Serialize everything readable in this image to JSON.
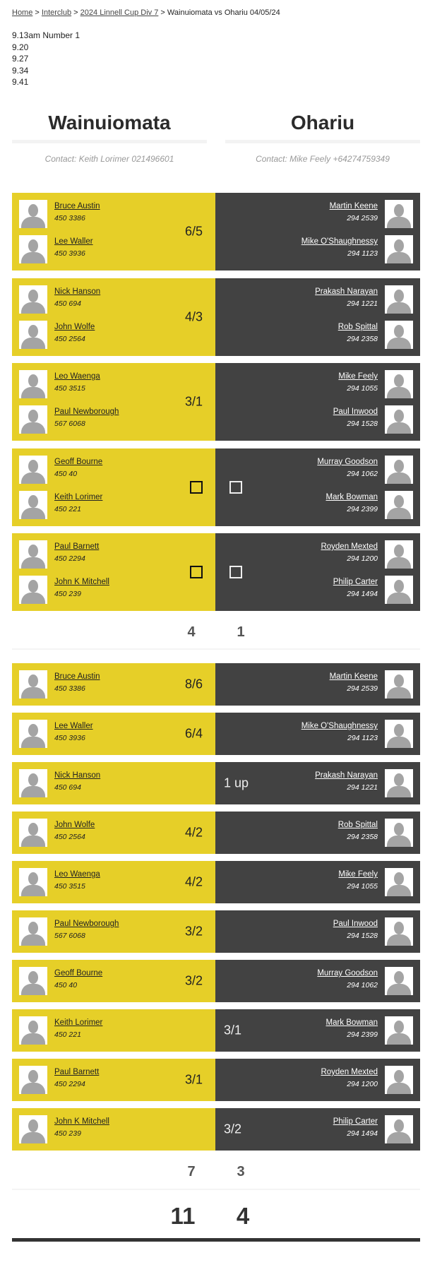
{
  "breadcrumb": {
    "items": [
      "Home",
      "Interclub",
      "2024 Linnell Cup Div 7"
    ],
    "current": "Wainuiomata vs Ohariu 04/05/24",
    "separator": ">"
  },
  "notes": [
    "9.13am Number 1",
    "9.20",
    "9.27",
    "9.34",
    "9.41"
  ],
  "teams": {
    "home": {
      "name": "Wainuiomata",
      "contact": "Contact: Keith Lorimer 021496601"
    },
    "away": {
      "name": "Ohariu",
      "contact": "Contact: Mike Feely +64274759349"
    }
  },
  "colors": {
    "home": "#e6cf28",
    "away": "#424242"
  },
  "foursomes": [
    {
      "home": [
        {
          "name": "Bruce Austin",
          "phone": "450 3386"
        },
        {
          "name": "Lee Waller",
          "phone": "450 3936"
        }
      ],
      "away": [
        {
          "name": "Martin Keene",
          "phone": "294 2539"
        },
        {
          "name": "Mike O'Shaughnessy",
          "phone": "294 1123"
        }
      ],
      "home_result": "6/5",
      "away_result": ""
    },
    {
      "home": [
        {
          "name": "Nick Hanson",
          "phone": "450 694"
        },
        {
          "name": "John Wolfe",
          "phone": "450 2564"
        }
      ],
      "away": [
        {
          "name": "Prakash Narayan",
          "phone": "294 1221"
        },
        {
          "name": "Rob Spittal",
          "phone": "294 2358"
        }
      ],
      "home_result": "4/3",
      "away_result": ""
    },
    {
      "home": [
        {
          "name": "Leo Waenga",
          "phone": "450 3515"
        },
        {
          "name": "Paul Newborough",
          "phone": "567 6068"
        }
      ],
      "away": [
        {
          "name": "Mike Feely",
          "phone": "294 1055"
        },
        {
          "name": "Paul Inwood",
          "phone": "294 1528"
        }
      ],
      "home_result": "3/1",
      "away_result": ""
    },
    {
      "home": [
        {
          "name": "Geoff Bourne",
          "phone": "450 40"
        },
        {
          "name": "Keith Lorimer",
          "phone": "450 221"
        }
      ],
      "away": [
        {
          "name": "Murray Goodson",
          "phone": "294 1062"
        },
        {
          "name": "Mark Bowman",
          "phone": "294 2399"
        }
      ],
      "home_result": "",
      "away_result": "",
      "checkbox": true
    },
    {
      "home": [
        {
          "name": "Paul Barnett",
          "phone": "450 2294"
        },
        {
          "name": "John K Mitchell",
          "phone": "450 239"
        }
      ],
      "away": [
        {
          "name": "Royden Mexted",
          "phone": "294 1200"
        },
        {
          "name": "Philip Carter",
          "phone": "294 1494"
        }
      ],
      "home_result": "",
      "away_result": "",
      "checkbox": true
    }
  ],
  "foursomes_totals": {
    "home": "4",
    "away": "1"
  },
  "singles": [
    {
      "home": {
        "name": "Bruce Austin",
        "phone": "450 3386"
      },
      "away": {
        "name": "Martin Keene",
        "phone": "294 2539"
      },
      "home_result": "8/6",
      "away_result": ""
    },
    {
      "home": {
        "name": "Lee Waller",
        "phone": "450 3936"
      },
      "away": {
        "name": "Mike O'Shaughnessy",
        "phone": "294 1123"
      },
      "home_result": "6/4",
      "away_result": ""
    },
    {
      "home": {
        "name": "Nick Hanson",
        "phone": "450 694"
      },
      "away": {
        "name": "Prakash Narayan",
        "phone": "294 1221"
      },
      "home_result": "",
      "away_result": "1 up"
    },
    {
      "home": {
        "name": "John Wolfe",
        "phone": "450 2564"
      },
      "away": {
        "name": "Rob Spittal",
        "phone": "294 2358"
      },
      "home_result": "4/2",
      "away_result": ""
    },
    {
      "home": {
        "name": "Leo Waenga",
        "phone": "450 3515"
      },
      "away": {
        "name": "Mike Feely",
        "phone": "294 1055"
      },
      "home_result": "4/2",
      "away_result": ""
    },
    {
      "home": {
        "name": "Paul Newborough",
        "phone": "567 6068"
      },
      "away": {
        "name": "Paul Inwood",
        "phone": "294 1528"
      },
      "home_result": "3/2",
      "away_result": ""
    },
    {
      "home": {
        "name": "Geoff Bourne",
        "phone": "450 40"
      },
      "away": {
        "name": "Murray Goodson",
        "phone": "294 1062"
      },
      "home_result": "3/2",
      "away_result": ""
    },
    {
      "home": {
        "name": "Keith Lorimer",
        "phone": "450 221"
      },
      "away": {
        "name": "Mark Bowman",
        "phone": "294 2399"
      },
      "home_result": "",
      "away_result": "3/1"
    },
    {
      "home": {
        "name": "Paul Barnett",
        "phone": "450 2294"
      },
      "away": {
        "name": "Royden Mexted",
        "phone": "294 1200"
      },
      "home_result": "3/1",
      "away_result": ""
    },
    {
      "home": {
        "name": "John K Mitchell",
        "phone": "450 239"
      },
      "away": {
        "name": "Philip Carter",
        "phone": "294 1494"
      },
      "home_result": "",
      "away_result": "3/2"
    }
  ],
  "singles_totals": {
    "home": "7",
    "away": "3"
  },
  "grand_totals": {
    "home": "11",
    "away": "4"
  }
}
